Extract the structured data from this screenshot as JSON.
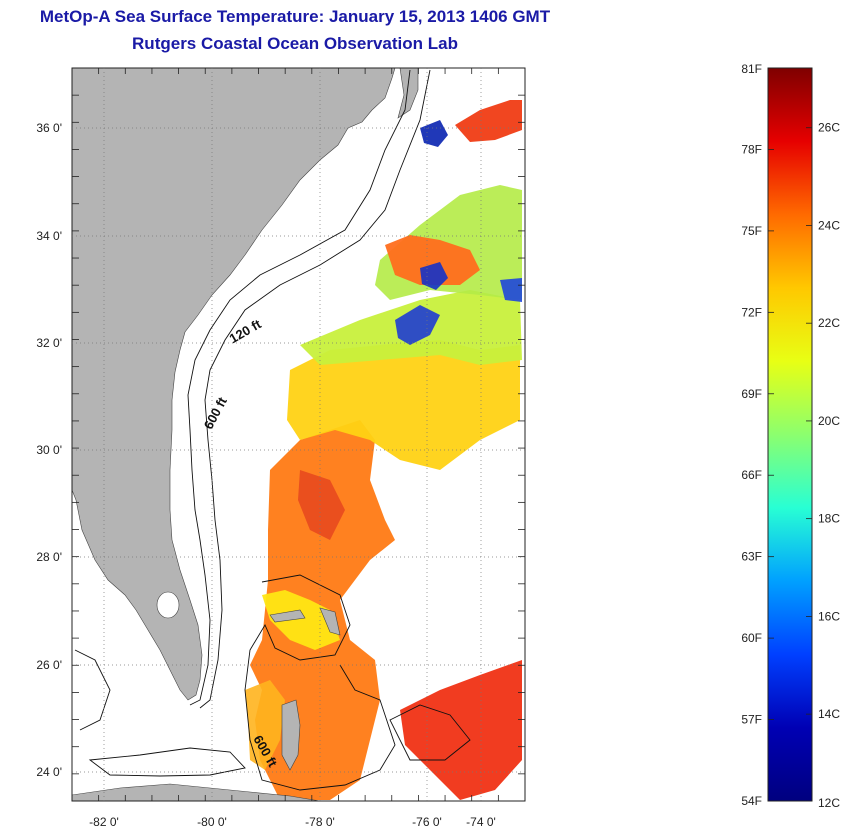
{
  "title": {
    "line1": "MetOp-A Sea Surface Temperature:  January 15, 2013 1406 GMT",
    "line2": "Rutgers Coastal Ocean Observation Lab"
  },
  "map": {
    "lon_ticks": [
      "-82 0'",
      "-80 0'",
      "-78 0'",
      "-76 0'",
      "-74 0'"
    ],
    "lat_ticks": [
      "36 0'",
      "34 0'",
      "32 0'",
      "30 0'",
      "28 0'",
      "26 0'",
      "24 0'"
    ],
    "contour_labels": [
      "120 ft",
      "600 ft",
      "600 ft"
    ],
    "land_color": "#b4b4b4",
    "grid": true
  },
  "colorbar": {
    "fahrenheit_labels": [
      "81F",
      "78F",
      "75F",
      "72F",
      "69F",
      "66F",
      "63F",
      "60F",
      "57F",
      "54F"
    ],
    "celsius_labels": [
      "26C",
      "24C",
      "22C",
      "20C",
      "18C",
      "16C",
      "14C",
      "12C"
    ],
    "colors": [
      "#7f0000",
      "#e60000",
      "#ff6a00",
      "#ffc800",
      "#e8ff14",
      "#8cff6e",
      "#28ffd4",
      "#00a0ff",
      "#0040ff",
      "#0000b4",
      "#00007f"
    ]
  }
}
